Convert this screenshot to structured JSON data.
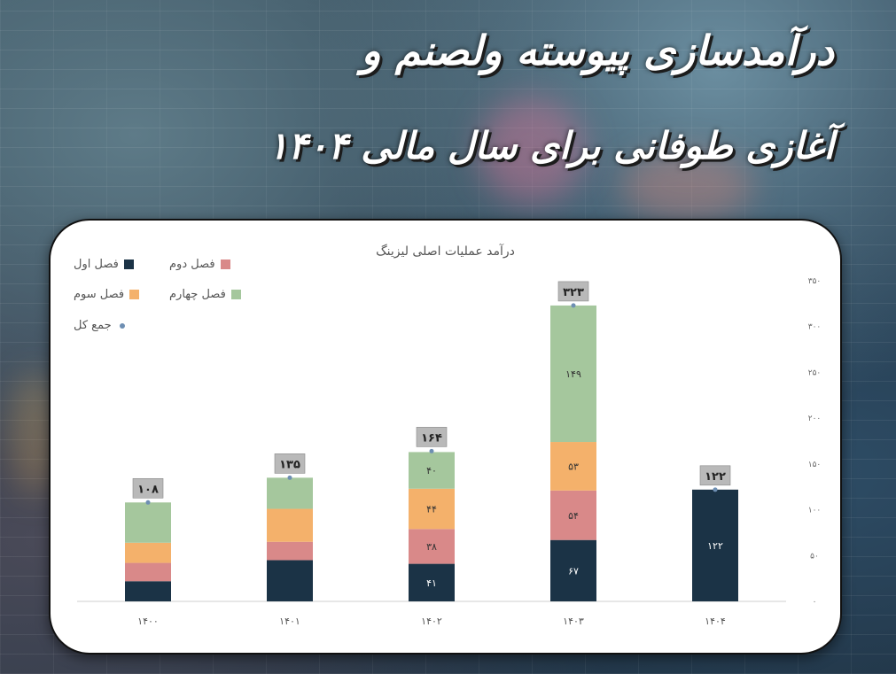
{
  "header": {
    "title_line1": "درآمدسازی پیوسته ولصنم و",
    "title_line2": "آغازی طوفانی برای سال مالی ۱۴۰۴"
  },
  "colors": {
    "q1": "#1b3346",
    "q2": "#d98989",
    "q3": "#f4b16b",
    "q4": "#a5c79d",
    "total": "#6e8fb3",
    "label_box": "#b9b9b9"
  },
  "chart_data": {
    "type": "bar",
    "stacked": true,
    "title": "درآمد عملیات اصلی لیزینگ",
    "categories": [
      "۱۴۰۰",
      "۱۴۰۱",
      "۱۴۰۲",
      "۱۴۰۳",
      "۱۴۰۴"
    ],
    "series": [
      {
        "name": "فصل اول",
        "key": "q1",
        "values": [
          22,
          45,
          41,
          67,
          122
        ],
        "labels": [
          "",
          "",
          "۴۱",
          "۶۷",
          "۱۲۲"
        ]
      },
      {
        "name": "فصل دوم",
        "key": "q2",
        "values": [
          20,
          20,
          38,
          54,
          0
        ],
        "labels": [
          "",
          "",
          "۳۸",
          "۵۴",
          ""
        ]
      },
      {
        "name": "فصل سوم",
        "key": "q3",
        "values": [
          22,
          36,
          44,
          53,
          0
        ],
        "labels": [
          "",
          "",
          "۴۴",
          "۵۳",
          ""
        ]
      },
      {
        "name": "فصل چهارم",
        "key": "q4",
        "values": [
          44,
          34,
          40,
          149,
          0
        ],
        "labels": [
          "",
          "",
          "۴۰",
          "۱۴۹",
          ""
        ]
      }
    ],
    "totals": {
      "name": "جمع کل",
      "values": [
        108,
        135,
        164,
        323,
        122
      ],
      "labels": [
        "۱۰۸",
        "۱۳۵",
        "۱۶۴",
        "۳۲۳",
        "۱۲۲"
      ]
    },
    "y_ticks": [
      "۰",
      "۵۰",
      "۱۰۰",
      "۱۵۰",
      "۲۰۰",
      "۲۵۰",
      "۳۰۰",
      "۳۵۰"
    ],
    "ylim": [
      0,
      350
    ],
    "axis_side": "right",
    "legend_position": "top-left",
    "grid": false
  }
}
